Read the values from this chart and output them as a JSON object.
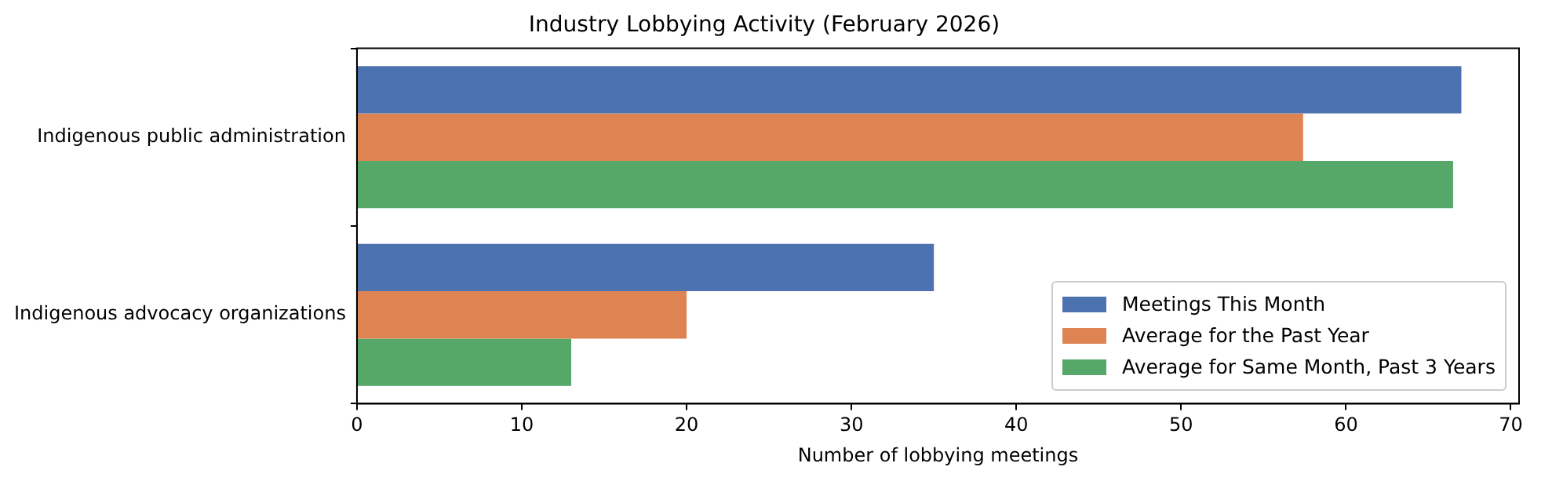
{
  "chart_data": {
    "type": "bar",
    "orientation": "horizontal",
    "title": "Industry Lobbying Activity (February 2026)",
    "xlabel": "Number of lobbying meetings",
    "categories": [
      "Indigenous public administration",
      "Indigenous advocacy organizations"
    ],
    "series": [
      {
        "name": "Meetings This Month",
        "color": "#4c72b0",
        "values": [
          67,
          35
        ]
      },
      {
        "name": "Average for the Past Year",
        "color": "#dd8452",
        "values": [
          57.4,
          20
        ]
      },
      {
        "name": "Average for Same Month, Past 3 Years",
        "color": "#55a868",
        "values": [
          66.5,
          13
        ]
      }
    ],
    "xlim": [
      0,
      70.5
    ],
    "xticks": [
      0,
      10,
      20,
      30,
      40,
      50,
      60,
      70
    ],
    "grid": false,
    "legend": "bottom right"
  }
}
